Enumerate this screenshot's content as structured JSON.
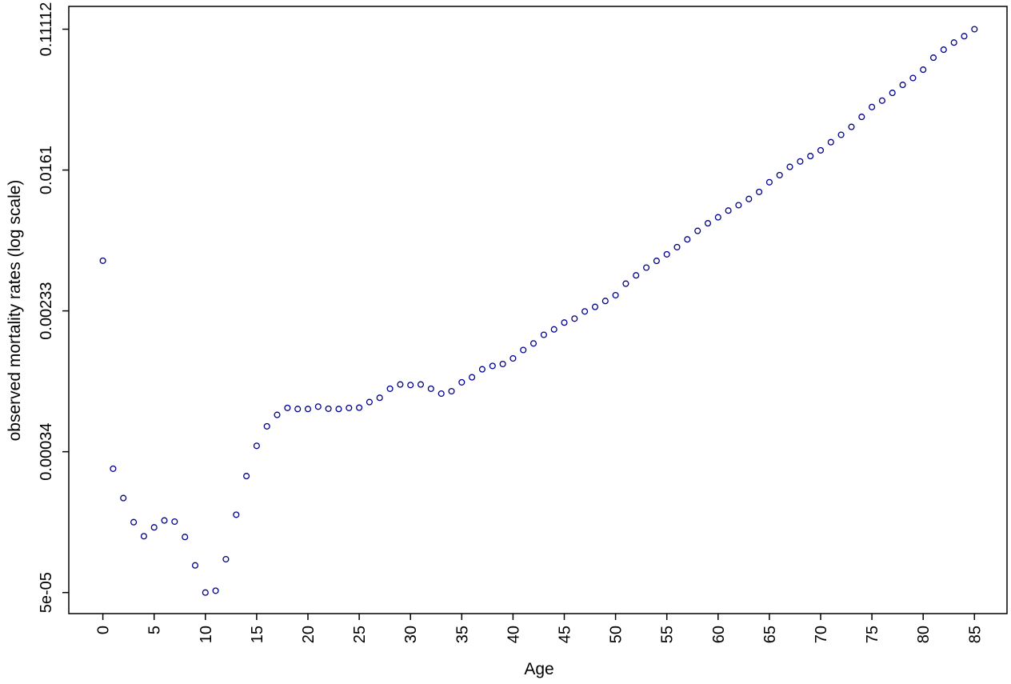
{
  "chart_data": {
    "type": "scatter",
    "title": "",
    "xlabel": "Age",
    "ylabel": "observed mortality rates (log scale)",
    "x_axis": {
      "min": 0,
      "max": 85,
      "tick_step": 5,
      "tick_labels": [
        "0",
        "5",
        "10",
        "15",
        "20",
        "25",
        "30",
        "35",
        "40",
        "45",
        "50",
        "55",
        "60",
        "65",
        "70",
        "75",
        "80",
        "85"
      ]
    },
    "y_axis": {
      "scale": "log",
      "min": 5e-05,
      "max": 0.11112,
      "tick_labels": [
        "0.11112",
        "0.0161",
        "0.00233",
        "0.00034",
        "5e-05"
      ],
      "tick_values": [
        0.11112,
        0.0161,
        0.00233,
        0.00034,
        5e-05
      ]
    },
    "grid": false,
    "legend": "none",
    "marker": "open-circle",
    "point_color": "#00008B",
    "age_start": 0,
    "rates": [
      0.00468,
      0.000272,
      0.000182,
      0.000131,
      0.000108,
      0.000122,
      0.000134,
      0.000132,
      0.000107,
      7.25e-05,
      5e-05,
      5.13e-05,
      7.89e-05,
      0.000145,
      0.000246,
      0.000372,
      0.000486,
      0.000568,
      0.000625,
      0.000616,
      0.000616,
      0.000636,
      0.000618,
      0.000616,
      0.000625,
      0.000627,
      0.000677,
      0.000718,
      0.000813,
      0.000861,
      0.000855,
      0.000861,
      0.000813,
      0.00076,
      0.000786,
      0.000887,
      0.00095,
      0.00106,
      0.00111,
      0.00114,
      0.00123,
      0.00138,
      0.00151,
      0.0017,
      0.00183,
      0.00201,
      0.00212,
      0.00234,
      0.00249,
      0.0027,
      0.00292,
      0.00342,
      0.00383,
      0.00426,
      0.00467,
      0.00511,
      0.00564,
      0.00627,
      0.00704,
      0.00781,
      0.00848,
      0.0093,
      0.01,
      0.0109,
      0.012,
      0.0137,
      0.0151,
      0.0169,
      0.0182,
      0.0196,
      0.0212,
      0.0237,
      0.0262,
      0.0292,
      0.0335,
      0.0383,
      0.0418,
      0.0465,
      0.0519,
      0.057,
      0.0639,
      0.0753,
      0.084,
      0.0926,
      0.101,
      0.11112
    ]
  }
}
